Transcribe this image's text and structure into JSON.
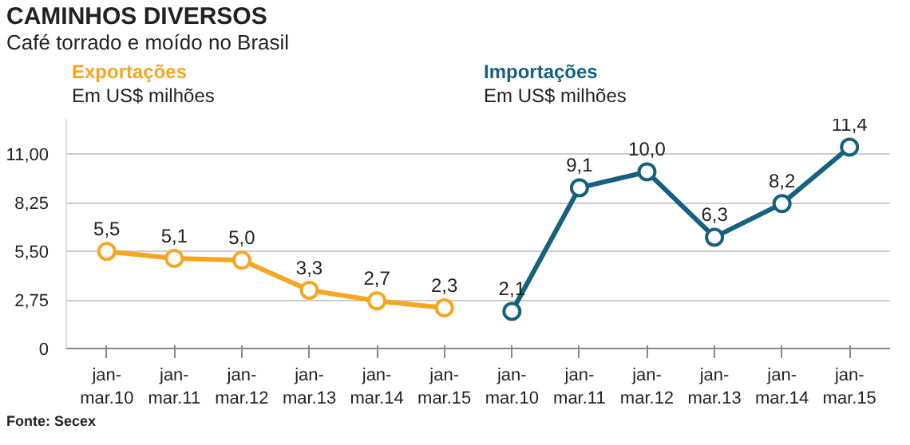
{
  "chart_data": {
    "type": "line",
    "title": "CAMINHOS DIVERSOS",
    "subtitle": "Café torrado e moído no Brasil",
    "categories": [
      "jan-mar.10",
      "jan-mar.11",
      "jan-mar.12",
      "jan-mar.13",
      "jan-mar.14",
      "jan-mar.15",
      "jan-mar.10",
      "jan-mar.11",
      "jan-mar.12",
      "jan-mar.13",
      "jan-mar.14",
      "jan-mar.15"
    ],
    "series": [
      {
        "name": "Exportações",
        "color": "#f5a623",
        "values": [
          5.5,
          5.1,
          5.0,
          3.3,
          2.7,
          2.3,
          null,
          null,
          null,
          null,
          null,
          null
        ],
        "value_labels": [
          "5,5",
          "5,1",
          "5,0",
          "3,3",
          "2,7",
          "2,3",
          null,
          null,
          null,
          null,
          null,
          null
        ]
      },
      {
        "name": "Importações",
        "color": "#17607f",
        "values": [
          null,
          null,
          null,
          null,
          null,
          null,
          2.1,
          9.1,
          10.0,
          6.3,
          8.2,
          11.4
        ],
        "value_labels": [
          null,
          null,
          null,
          null,
          null,
          null,
          "2,1",
          "9,1",
          "10,0",
          "6,3",
          "8,2",
          "11,4"
        ]
      }
    ],
    "annotations": [
      "Em US$ milhões",
      "Em US$ milhões",
      "Fonte: Secex"
    ],
    "ylim": [
      0,
      13
    ],
    "yticks": [
      0,
      {
        "value": 2.75,
        "label": "2,75"
      },
      {
        "value": 5.5,
        "label": "5,50"
      },
      {
        "value": 8.25,
        "label": "8,25"
      },
      {
        "value": 11,
        "label": "11,00"
      }
    ],
    "grid": "y",
    "marker": "circle",
    "line_style": "solid"
  }
}
